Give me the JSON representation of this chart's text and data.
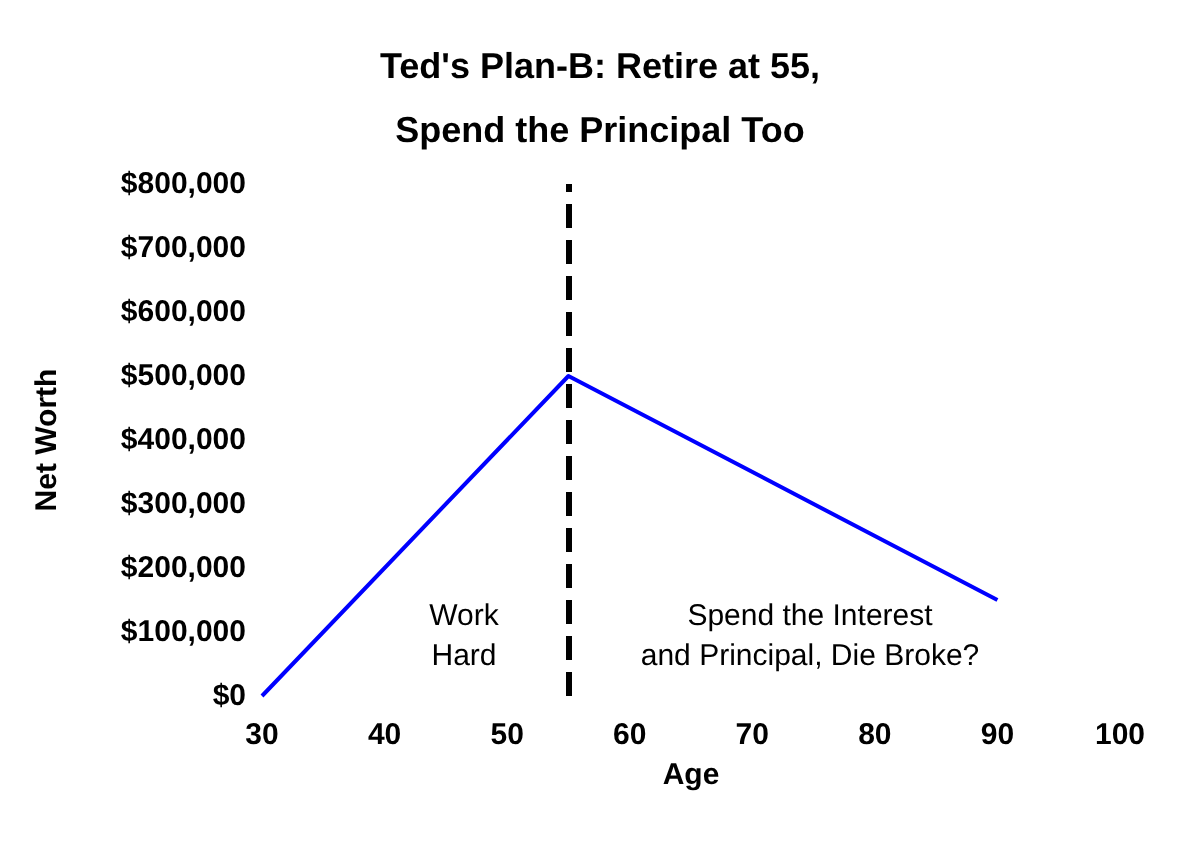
{
  "chart_data": {
    "type": "line",
    "title": "Ted's Plan-B: Retire at 55,\nSpend the Principal Too",
    "xlabel": "Age",
    "ylabel": "Net Worth",
    "x": [
      30,
      55,
      90
    ],
    "series": [
      {
        "color": "#0000ff",
        "values": [
          0,
          500000,
          150000
        ]
      }
    ],
    "xlim": [
      30,
      100
    ],
    "xticks": [
      30,
      40,
      50,
      60,
      70,
      80,
      90,
      100
    ],
    "ylim": [
      0,
      800000
    ],
    "yticks": [
      {
        "value": 0,
        "label": "$0"
      },
      {
        "value": 100000,
        "label": "$100,000"
      },
      {
        "value": 200000,
        "label": "$200,000"
      },
      {
        "value": 300000,
        "label": "$300,000"
      },
      {
        "value": 400000,
        "label": "$400,000"
      },
      {
        "value": 500000,
        "label": "$500,000"
      },
      {
        "value": 600000,
        "label": "$600,000"
      },
      {
        "value": 700000,
        "label": "$700,000"
      },
      {
        "value": 800000,
        "label": "$800,000"
      }
    ],
    "ref_lines": [
      {
        "axis": "x",
        "value": 55,
        "color": "#000000",
        "line_style": "dashed"
      }
    ],
    "annotations": [
      "Work\nHard",
      "Spend the Interest\nand Principal, Die Broke?"
    ],
    "grid": false,
    "marker": "none",
    "line_style": "solid"
  }
}
